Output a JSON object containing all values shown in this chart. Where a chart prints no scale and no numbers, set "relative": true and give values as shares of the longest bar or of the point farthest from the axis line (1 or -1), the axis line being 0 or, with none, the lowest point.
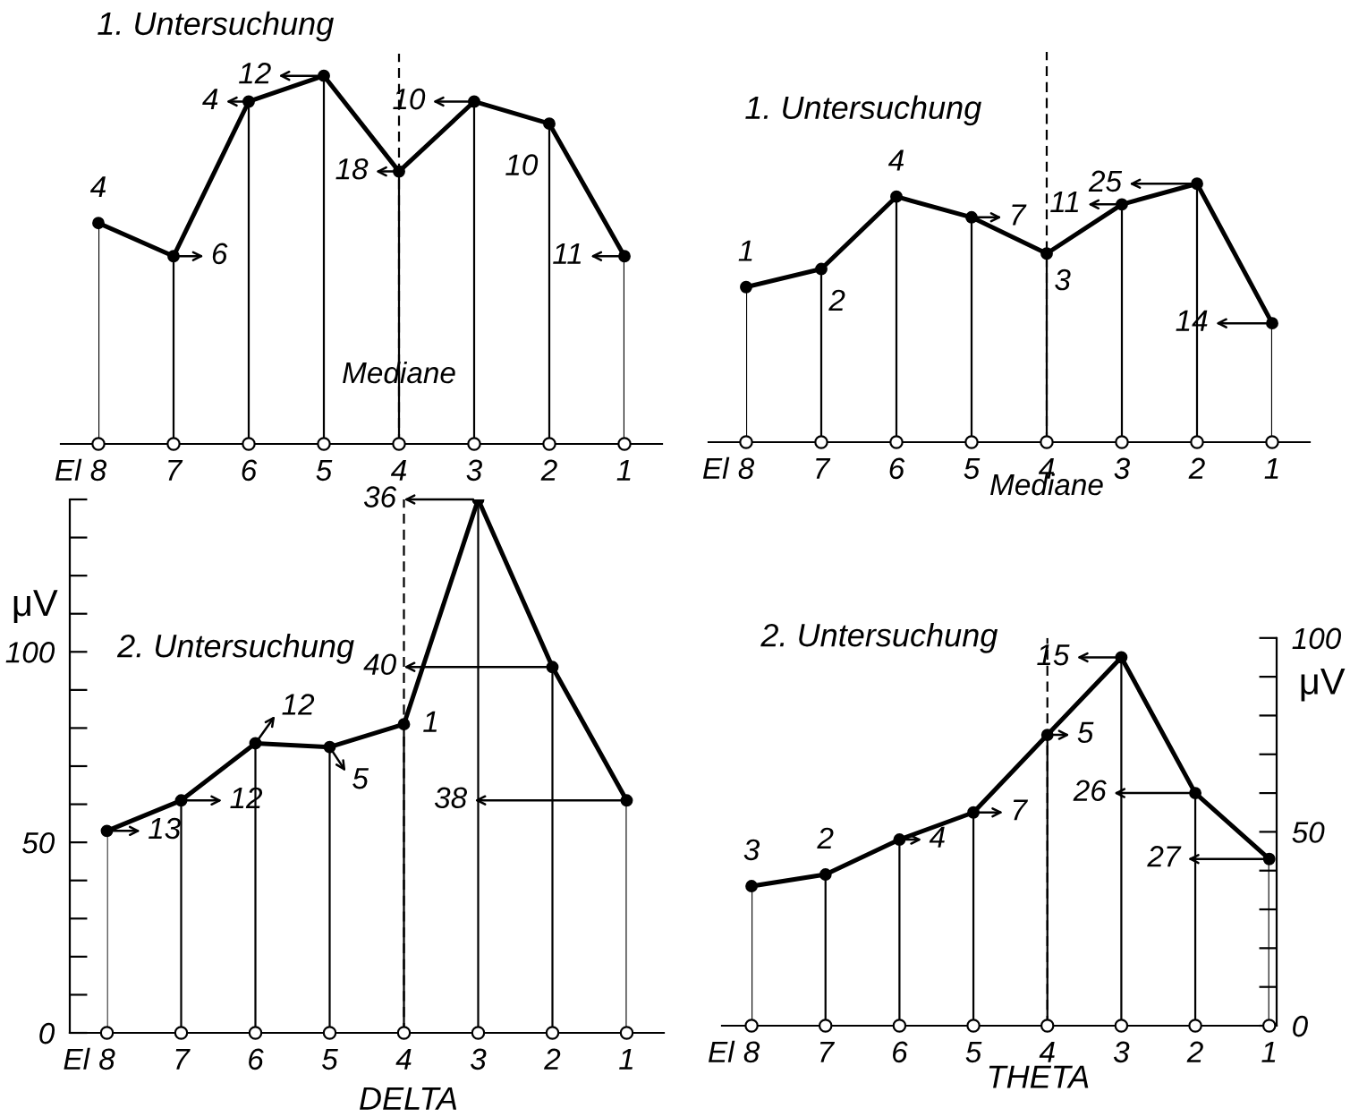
{
  "chart_data": [
    {
      "type": "line",
      "title": "1. Untersuchung",
      "xlabel": "El",
      "relative": true,
      "marker": "circle",
      "grid": "x",
      "x": [
        8,
        7,
        6,
        5,
        4,
        3,
        2,
        1
      ],
      "xlim": [
        8.5,
        0.5
      ],
      "xticks": [
        8,
        7,
        6,
        5,
        4,
        3,
        2,
        1
      ],
      "series": [
        {
          "color": "#000000",
          "values": [
            0.6,
            0.51,
            0.93,
            1,
            0.74,
            0.93,
            0.87,
            0.51
          ]
        }
      ],
      "ref_lines": [
        {
          "axis": "x",
          "value": 4,
          "label": "Mediane",
          "line_style": "dashed"
        }
      ],
      "annotations": [
        {
          "text": "4",
          "x": 8,
          "y": 0.6
        },
        {
          "text": "6",
          "x": 7,
          "y": 0.51
        },
        {
          "text": "4",
          "x": 6,
          "y": 0.93
        },
        {
          "text": "12",
          "x": 5,
          "y": 1
        },
        {
          "text": "18",
          "x": 4,
          "y": 0.74
        },
        {
          "text": "10",
          "x": 3,
          "y": 0.93
        },
        {
          "text": "10",
          "x": 2,
          "y": 0.87
        },
        {
          "text": "11",
          "x": 1,
          "y": 0.51
        }
      ]
    },
    {
      "type": "line",
      "title": "1. Untersuchung",
      "xlabel": "El",
      "relative": true,
      "marker": "circle",
      "grid": "x",
      "x": [
        8,
        7,
        6,
        5,
        4,
        3,
        2,
        1
      ],
      "xlim": [
        8.5,
        0.5
      ],
      "xticks": [
        8,
        7,
        6,
        5,
        4,
        3,
        2,
        1
      ],
      "series": [
        {
          "color": "#000000",
          "values": [
            0.6,
            0.67,
            0.95,
            0.87,
            0.73,
            0.92,
            1,
            0.46
          ]
        }
      ],
      "ref_lines": [
        {
          "axis": "x",
          "value": 4,
          "label": "Mediane",
          "line_style": "dashed"
        }
      ],
      "annotations": [
        {
          "text": "1",
          "x": 8,
          "y": 0.6
        },
        {
          "text": "2",
          "x": 7,
          "y": 0.67
        },
        {
          "text": "4",
          "x": 6,
          "y": 0.95
        },
        {
          "text": "7",
          "x": 5,
          "y": 0.87
        },
        {
          "text": "3",
          "x": 4,
          "y": 0.73
        },
        {
          "text": "11",
          "x": 3,
          "y": 0.92
        },
        {
          "text": "25",
          "x": 2,
          "y": 1
        },
        {
          "text": "14",
          "x": 1,
          "y": 0.46
        }
      ]
    },
    {
      "type": "line",
      "title": "2. Untersuchung",
      "xlabel": "El",
      "ylabel": "μV",
      "marker": "circle",
      "grid": "x",
      "x": [
        8,
        7,
        6,
        5,
        4,
        3,
        2,
        1
      ],
      "xlim": [
        8.5,
        0.5
      ],
      "xticks": [
        8,
        7,
        6,
        5,
        4,
        3,
        2,
        1
      ],
      "ylim": [
        0,
        140
      ],
      "yticks": [
        0,
        {
          "value": 10,
          "label": null
        },
        {
          "value": 20,
          "label": null
        },
        {
          "value": 30,
          "label": null
        },
        {
          "value": 40,
          "label": null
        },
        50,
        {
          "value": 60,
          "label": null
        },
        {
          "value": 70,
          "label": null
        },
        {
          "value": 80,
          "label": null
        },
        {
          "value": 90,
          "label": null
        },
        100,
        {
          "value": 110,
          "label": null
        },
        {
          "value": 120,
          "label": null
        },
        {
          "value": 130,
          "label": null
        },
        {
          "value": 140,
          "label": null
        }
      ],
      "series": [
        {
          "color": "#000000",
          "values": [
            53,
            61,
            76,
            75,
            81,
            140,
            96,
            61
          ]
        }
      ],
      "ref_lines": [
        {
          "axis": "x",
          "value": 4,
          "line_style": "dashed"
        }
      ],
      "annotations": [
        {
          "text": "13",
          "x": 8,
          "y": 53
        },
        {
          "text": "12",
          "x": 7,
          "y": 61
        },
        {
          "text": "12",
          "x": 6,
          "y": 76
        },
        {
          "text": "5",
          "x": 5,
          "y": 75
        },
        {
          "text": "1",
          "x": 4,
          "y": 81
        },
        {
          "text": "36",
          "x": 3,
          "y": 140
        },
        "40",
        "38",
        "DELTA"
      ]
    },
    {
      "type": "line",
      "title": "2. Untersuchung",
      "xlabel": "El",
      "ylabel": "μV",
      "marker": "circle",
      "grid": "x",
      "x": [
        8,
        7,
        6,
        5,
        4,
        3,
        2,
        1
      ],
      "xlim": [
        8.4,
        0.9
      ],
      "xticks": [
        8,
        7,
        6,
        5,
        4,
        3,
        2,
        1
      ],
      "ylim": [
        0,
        100
      ],
      "yticks": [
        0,
        {
          "value": 10,
          "label": null
        },
        {
          "value": 20,
          "label": null
        },
        {
          "value": 30,
          "label": null
        },
        {
          "value": 40,
          "label": null
        },
        50,
        {
          "value": 60,
          "label": null
        },
        {
          "value": 70,
          "label": null
        },
        {
          "value": 80,
          "label": null
        },
        {
          "value": 90,
          "label": null
        },
        100
      ],
      "series": [
        {
          "color": "#000000",
          "values": [
            36,
            39,
            48,
            55,
            75,
            95,
            60,
            43
          ]
        }
      ],
      "ref_lines": [
        {
          "axis": "x",
          "value": 4,
          "line_style": "dashed"
        }
      ],
      "annotations": [
        {
          "text": "3",
          "x": 8,
          "y": 36
        },
        {
          "text": "2",
          "x": 7,
          "y": 39
        },
        {
          "text": "4",
          "x": 6,
          "y": 48
        },
        {
          "text": "7",
          "x": 5,
          "y": 55
        },
        {
          "text": "5",
          "x": 4,
          "y": 75
        },
        {
          "text": "15",
          "x": 3,
          "y": 95
        },
        {
          "text": "26",
          "x": 2,
          "y": 60
        },
        {
          "text": "27",
          "x": 1,
          "y": 43
        },
        "THETA"
      ]
    }
  ]
}
